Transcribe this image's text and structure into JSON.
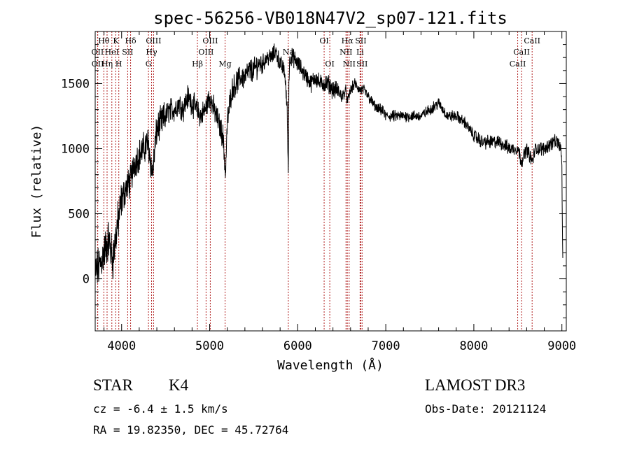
{
  "chart_data": {
    "type": "line",
    "title": "spec-56256-VB018N47V2_sp07-121.fits",
    "xlabel": "Wavelength (Å)",
    "ylabel": "Flux (relative)",
    "xlim": [
      3700,
      9050
    ],
    "ylim": [
      -400,
      1900
    ],
    "xticks": [
      4000,
      5000,
      6000,
      7000,
      8000,
      9000
    ],
    "xtick_labels": [
      "4000",
      "5000",
      "6000",
      "7000",
      "8000",
      "9000"
    ],
    "yticks": [
      0,
      500,
      1000,
      1500
    ],
    "ytick_labels": [
      "0",
      "500",
      "1000",
      "1500"
    ],
    "line_color": "#000000",
    "marker_color": "#b22222",
    "spectrum_anchors": {
      "x": [
        3700,
        3750,
        3800,
        3850,
        3900,
        3950,
        4000,
        4050,
        4100,
        4150,
        4200,
        4250,
        4300,
        4350,
        4400,
        4450,
        4500,
        4550,
        4600,
        4650,
        4700,
        4750,
        4800,
        4850,
        4900,
        4950,
        5000,
        5050,
        5100,
        5150,
        5180,
        5200,
        5250,
        5300,
        5350,
        5400,
        5450,
        5500,
        5550,
        5600,
        5650,
        5700,
        5750,
        5800,
        5850,
        5880,
        5893,
        5900,
        5910,
        5950,
        6000,
        6050,
        6100,
        6150,
        6200,
        6250,
        6300,
        6350,
        6400,
        6450,
        6500,
        6550,
        6563,
        6600,
        6650,
        6700,
        6750,
        6800,
        6850,
        6900,
        6950,
        7000,
        7100,
        7200,
        7300,
        7400,
        7500,
        7600,
        7650,
        7700,
        7800,
        7900,
        8000,
        8100,
        8200,
        8300,
        8400,
        8500,
        8542,
        8600,
        8662,
        8700,
        8800,
        8900,
        8950,
        8990,
        9000,
        9010
      ],
      "y": [
        50,
        100,
        200,
        300,
        150,
        400,
        600,
        700,
        750,
        900,
        950,
        1000,
        1050,
        800,
        1150,
        1200,
        1250,
        1300,
        1300,
        1350,
        1300,
        1400,
        1350,
        1300,
        1250,
        1300,
        1400,
        1300,
        1200,
        1100,
        800,
        1200,
        1450,
        1500,
        1550,
        1550,
        1600,
        1600,
        1650,
        1650,
        1700,
        1700,
        1750,
        1650,
        1600,
        1300,
        800,
        1500,
        1700,
        1700,
        1650,
        1600,
        1550,
        1500,
        1550,
        1500,
        1500,
        1500,
        1450,
        1450,
        1400,
        1450,
        1350,
        1450,
        1500,
        1450,
        1450,
        1400,
        1350,
        1300,
        1300,
        1250,
        1250,
        1250,
        1250,
        1250,
        1300,
        1350,
        1300,
        1250,
        1250,
        1200,
        1100,
        1050,
        1050,
        1050,
        1000,
        1000,
        900,
        1000,
        900,
        1000,
        1000,
        1050,
        1050,
        1000,
        850,
        100
      ]
    },
    "line_markers": [
      {
        "label": "Hθ",
        "x": 3798,
        "row": 1
      },
      {
        "label": "OII",
        "x": 3727,
        "row": 2
      },
      {
        "label": "OII",
        "x": 3729,
        "row": 3
      },
      {
        "label": "K",
        "x": 3934,
        "row": 1
      },
      {
        "label": "HeI",
        "x": 3889,
        "row": 2
      },
      {
        "label": "Hη",
        "x": 3835,
        "row": 3
      },
      {
        "label": "Hδ",
        "x": 4102,
        "row": 1
      },
      {
        "label": "SII",
        "x": 4069,
        "row": 2
      },
      {
        "label": "H",
        "x": 3968,
        "row": 3
      },
      {
        "label": "OIII",
        "x": 4363,
        "row": 1
      },
      {
        "label": "Hγ",
        "x": 4340,
        "row": 2
      },
      {
        "label": "G",
        "x": 4305,
        "row": 3
      },
      {
        "label": "OIII",
        "x": 5007,
        "row": 1
      },
      {
        "label": "OIII",
        "x": 4959,
        "row": 2
      },
      {
        "label": "Hβ",
        "x": 4861,
        "row": 3
      },
      {
        "label": "Mg",
        "x": 5175,
        "row": 3
      },
      {
        "label": "Na",
        "x": 5893,
        "row": 2
      },
      {
        "label": "OI",
        "x": 6300,
        "row": 1
      },
      {
        "label": "OI",
        "x": 6364,
        "row": 3
      },
      {
        "label": "Hα",
        "x": 6563,
        "row": 1
      },
      {
        "label": "SII",
        "x": 6717,
        "row": 1
      },
      {
        "label": "NII",
        "x": 6548,
        "row": 2
      },
      {
        "label": "Li",
        "x": 6708,
        "row": 2
      },
      {
        "label": "NII",
        "x": 6584,
        "row": 3
      },
      {
        "label": "SII",
        "x": 6731,
        "row": 3
      },
      {
        "label": "CaII",
        "x": 8662,
        "row": 1
      },
      {
        "label": "CaII",
        "x": 8542,
        "row": 2
      },
      {
        "label": "CaII",
        "x": 8498,
        "row": 3
      }
    ]
  },
  "info": {
    "object_class": "STAR",
    "subclass": "K4",
    "survey": "LAMOST DR3",
    "cz": "cz = -6.4 ± 1.5 km/s",
    "obs_date": "Obs-Date: 20121124",
    "coords": "RA =  19.82350, DEC =  45.72764"
  }
}
